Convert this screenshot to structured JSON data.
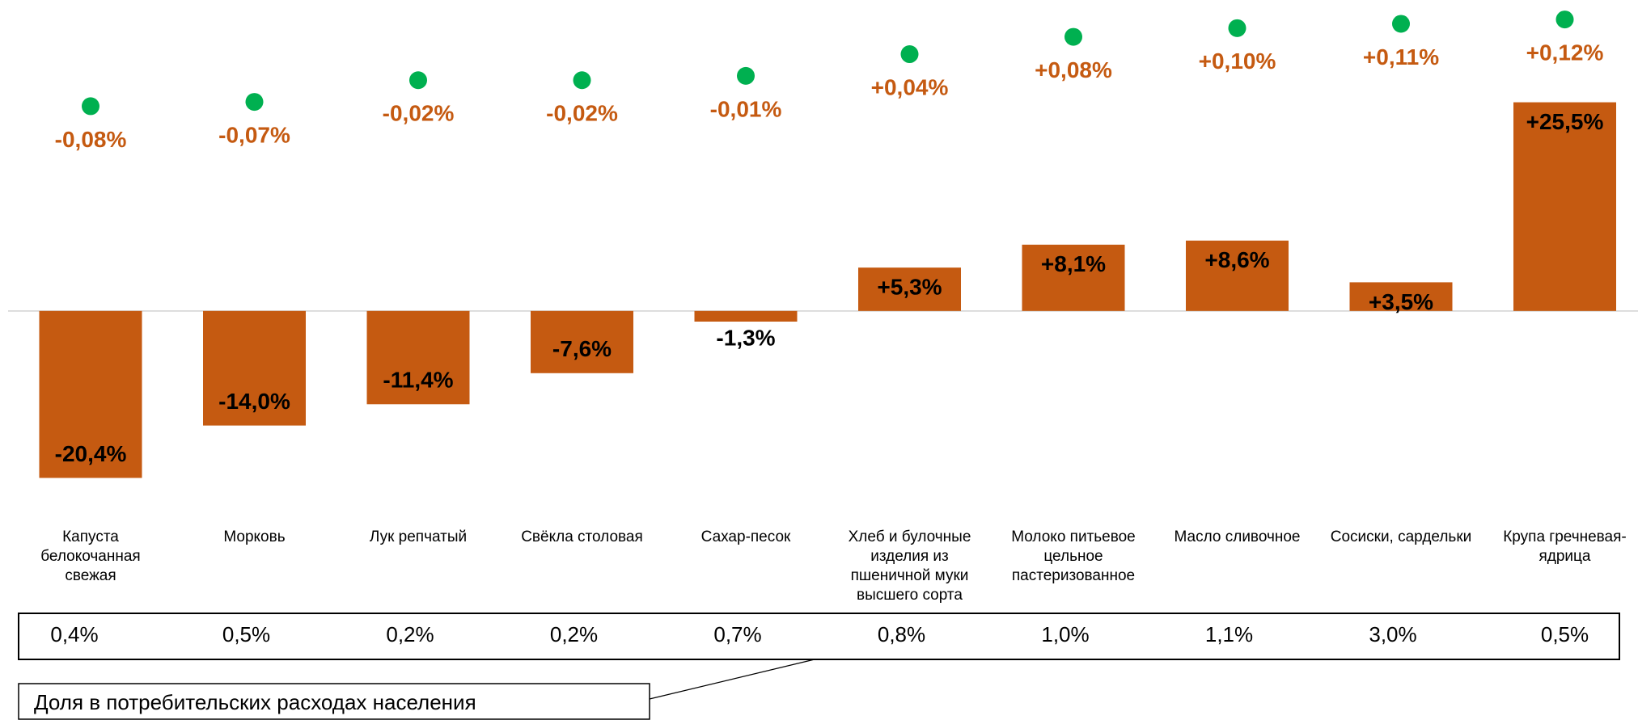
{
  "chart_data": {
    "type": "bar",
    "categories": [
      "Капуста белокочанная свежая",
      "Морковь",
      "Лук репчатый",
      "Свёкла столовая",
      "Сахар-песок",
      "Хлеб и булочные изделия из пшеничной муки высшего сорта",
      "Молоко питьевое цельное пастеризованное",
      "Масло сливочное",
      "Сосиски, сардельки",
      "Крупа гречневая-ядрица"
    ],
    "series": [
      {
        "type": "bar",
        "color": "#c55a11",
        "values": [
          -20.4,
          -14.0,
          -11.4,
          -7.6,
          -1.3,
          5.3,
          8.1,
          8.6,
          3.5,
          25.5
        ],
        "value_labels": [
          "-20,4%",
          "-14,0%",
          "-11,4%",
          "-7,6%",
          "-1,3%",
          "+5,3%",
          "+8,1%",
          "+8,6%",
          "+3,5%",
          "+25,5%"
        ]
      },
      {
        "type": "scatter",
        "axis": "y2",
        "color": "#00b050",
        "label_color": "#c55a11",
        "values": [
          -0.08,
          -0.07,
          -0.02,
          -0.02,
          -0.01,
          0.04,
          0.08,
          0.1,
          0.11,
          0.12
        ],
        "value_labels": [
          "-0,08%",
          "-0,07%",
          "-0,02%",
          "-0,02%",
          "-0,01%",
          "+0,04%",
          "+0,08%",
          "+0,10%",
          "+0,11%",
          "+0,12%"
        ]
      }
    ],
    "ylim": [
      -25,
      30
    ],
    "y2lim": [
      -0.15,
      0.15
    ],
    "share_row": {
      "title": "Доля в потребительских расходах населения",
      "cells": [
        "0,4%",
        "0,5%",
        "0,2%",
        "0,2%",
        "0,7%",
        "0,8%",
        "1,0%",
        "1,1%",
        "3,0%",
        "0,5%"
      ]
    }
  }
}
